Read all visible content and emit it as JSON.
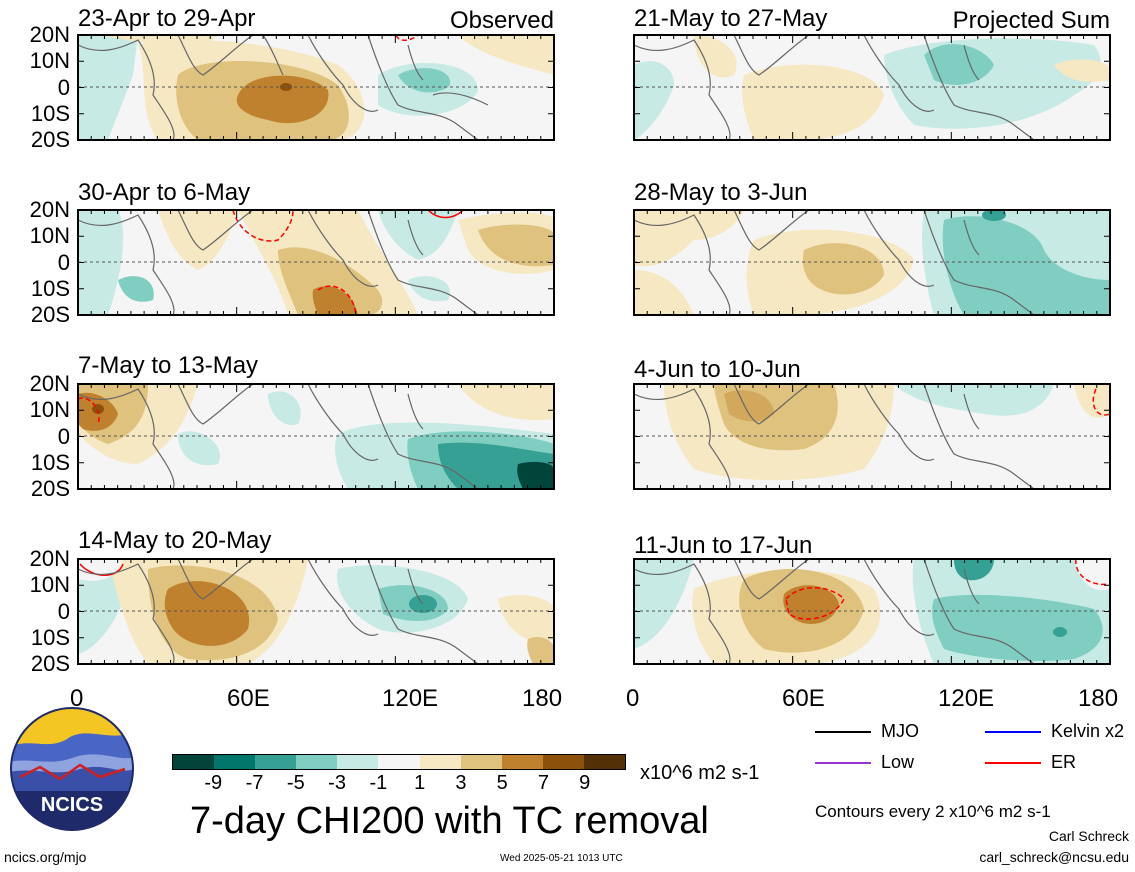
{
  "observed_label": "Observed",
  "projected_label": "Projected Sum",
  "panels_left": [
    {
      "title": "23-Apr to 29-Apr"
    },
    {
      "title": "30-Apr to 6-May"
    },
    {
      "title": "7-May to 13-May"
    },
    {
      "title": "14-May to 20-May"
    }
  ],
  "panels_right": [
    {
      "title": "21-May to 27-May"
    },
    {
      "title": "28-May to 3-Jun"
    },
    {
      "title": "4-Jun to 10-Jun"
    },
    {
      "title": "11-Jun to 17-Jun"
    }
  ],
  "lat_labels": [
    "20N",
    "10N",
    "0",
    "10S",
    "20S"
  ],
  "lon_labels": [
    "0",
    "60E",
    "120E",
    "180"
  ],
  "colorbar": {
    "colors": [
      "#00443a",
      "#01766b",
      "#35a093",
      "#80cdc1",
      "#c7eae5",
      "#f5f5f5",
      "#f6e8c3",
      "#dfc27d",
      "#bf812d",
      "#8c510a",
      "#543005"
    ],
    "ticks": [
      "-9",
      "-7",
      "-5",
      "-3",
      "-1",
      "1",
      "3",
      "5",
      "7",
      "9"
    ],
    "units": "x10^6 m2 s-1"
  },
  "main_title": "7-day CHI200 with TC removal",
  "legend": [
    {
      "label": "MJO",
      "color": "#000000"
    },
    {
      "label": "Kelvin x2",
      "color": "#0000ff"
    },
    {
      "label": "Low",
      "color": "#9a32cd"
    },
    {
      "label": "ER",
      "color": "#ff0000"
    }
  ],
  "contours_note": "Contours every 2 x10^6 m2 s-1",
  "author_name": "Carl Schreck",
  "author_email": "carl_schreck@ncsu.edu",
  "site": "ncics.org/mjo",
  "timestamp": "Wed 2025-05-21 1013 UTC",
  "logo_text": "NCICS"
}
